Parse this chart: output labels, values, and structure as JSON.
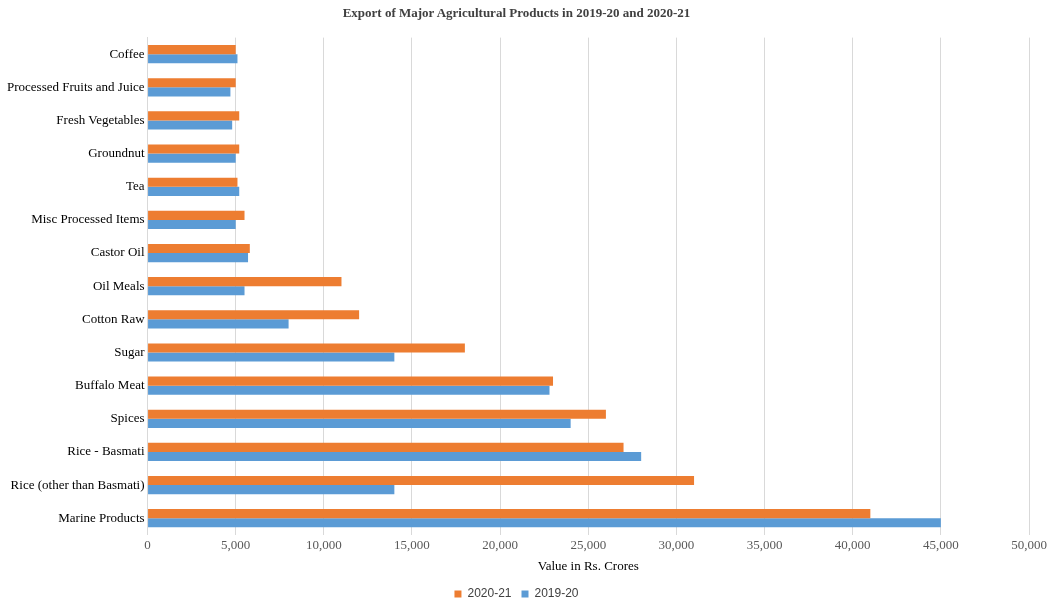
{
  "chart_data": {
    "type": "bar",
    "orientation": "horizontal",
    "title": "Export of Major Agricultural Products in 2019-20 and 2020-21",
    "xlabel": "Value in Rs. Crores",
    "categories": [
      "Coffee",
      "Processed Fruits and Juice",
      "Fresh Vegetables",
      "Groundnut",
      "Tea",
      "Misc Processed Items",
      "Castor Oil",
      "Oil Meals",
      "Cotton Raw",
      "Sugar",
      "Buffalo Meat",
      "Spices",
      "Rice - Basmati",
      "Rice (other than Basmati)",
      "Marine Products"
    ],
    "series": [
      {
        "name": "2020-21",
        "color": "#ed7d31",
        "values": [
          5000,
          5000,
          5200,
          5200,
          5100,
          5500,
          5800,
          11000,
          12000,
          18000,
          23000,
          26000,
          27000,
          31000,
          41000
        ]
      },
      {
        "name": "2019-20",
        "color": "#5b9bd5",
        "values": [
          5100,
          4700,
          4800,
          5000,
          5200,
          5000,
          5700,
          5500,
          8000,
          14000,
          22800,
          24000,
          28000,
          14000,
          45000
        ]
      }
    ],
    "xlim": [
      0,
      50000
    ],
    "xticks": [
      {
        "value": 0,
        "label": "0"
      },
      {
        "value": 5000,
        "label": "5,000"
      },
      {
        "value": 10000,
        "label": "10,000"
      },
      {
        "value": 15000,
        "label": "15,000"
      },
      {
        "value": 20000,
        "label": "20,000"
      },
      {
        "value": 25000,
        "label": "25,000"
      },
      {
        "value": 30000,
        "label": "30,000"
      },
      {
        "value": 35000,
        "label": "35,000"
      },
      {
        "value": 40000,
        "label": "40,000"
      },
      {
        "value": 45000,
        "label": "45,000"
      },
      {
        "value": 50000,
        "label": "50,000"
      }
    ],
    "grid": "x",
    "legend": "bottom"
  }
}
